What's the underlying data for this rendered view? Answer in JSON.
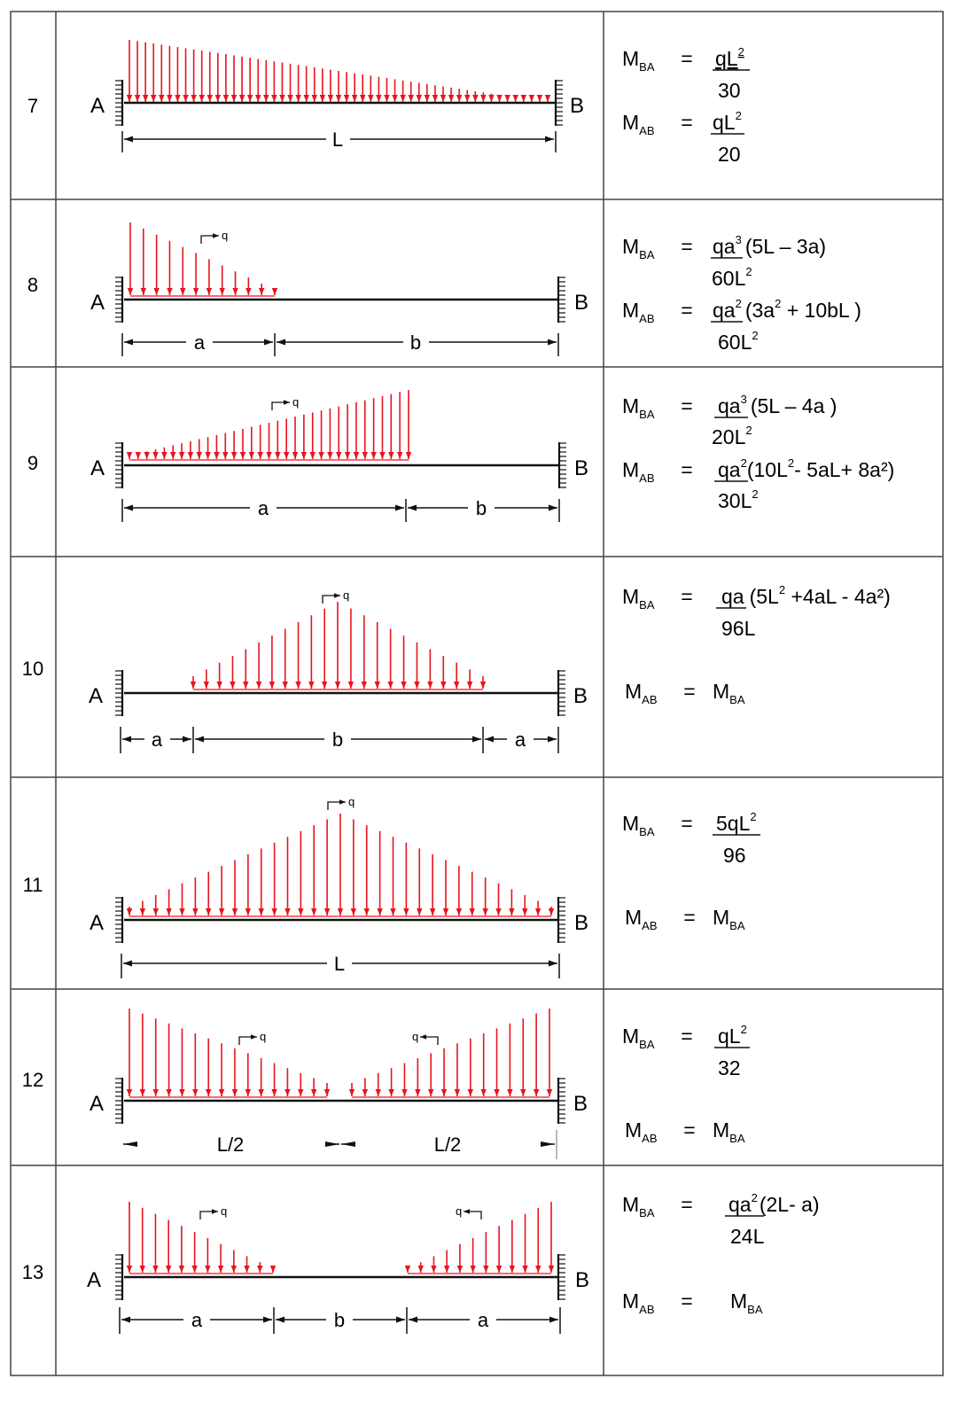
{
  "colors": {
    "load": "#e8141e",
    "ink": "#111111",
    "grid": "#444444"
  },
  "rows": [
    {
      "number": "7",
      "support_left": "A",
      "support_right": "B",
      "load_label": "",
      "load_label_right": "",
      "dims": [
        "L"
      ],
      "formulas": [
        {
          "sym": "M",
          "sub": "BA",
          "eq": "=",
          "num": "qL",
          "num_sup": "2",
          "tail": "",
          "tail_sup": "",
          "tail2": "",
          "den": "30",
          "den_sup": ""
        },
        {
          "sym": "M",
          "sub": "AB",
          "eq": "=",
          "num": "qL",
          "num_sup": "2",
          "tail": "",
          "tail_sup": "",
          "tail2": "",
          "den": "20",
          "den_sup": ""
        }
      ]
    },
    {
      "number": "8",
      "support_left": "A",
      "support_right": "B",
      "load_label": "q",
      "load_label_right": "",
      "dims": [
        "a",
        "b"
      ],
      "formulas": [
        {
          "sym": "M",
          "sub": "BA",
          "eq": "=",
          "num": "qa",
          "num_sup": "3",
          "tail": "(5L – 3a)",
          "tail_sup": "",
          "tail2": "",
          "den": "60L",
          "den_sup": "2"
        },
        {
          "sym": "M",
          "sub": "AB",
          "eq": "=",
          "num": "qa",
          "num_sup": "2",
          "tail": "(3a",
          "tail_sup": "2",
          "tail2": " + 10bL )",
          "den": "60L",
          "den_sup": "2"
        }
      ]
    },
    {
      "number": "9",
      "support_left": "A",
      "support_right": "B",
      "load_label": "q",
      "load_label_right": "",
      "dims": [
        "a",
        "b"
      ],
      "formulas": [
        {
          "sym": "M",
          "sub": "BA",
          "eq": "=",
          "num": "qa",
          "num_sup": "3",
          "tail": "(5L – 4a )",
          "tail_sup": "",
          "tail2": "",
          "den": "20L",
          "den_sup": "2"
        },
        {
          "sym": "M",
          "sub": "AB",
          "eq": "=",
          "num": "qa",
          "num_sup": "2",
          "tail": "(10L",
          "tail_sup": "2",
          "tail2": "- 5aL+ 8a²)",
          "den": "30L",
          "den_sup": "2"
        }
      ]
    },
    {
      "number": "10",
      "support_left": "A",
      "support_right": "B",
      "load_label": "q",
      "load_label_right": "",
      "dims": [
        "a",
        "b",
        "a"
      ],
      "formulas": [
        {
          "sym": "M",
          "sub": "BA",
          "eq": "=",
          "num": "qa",
          "num_sup": "",
          "tail": "(5L",
          "tail_sup": "2",
          "tail2": " +4aL - 4a²)",
          "den": "96L",
          "den_sup": ""
        },
        {
          "sym": "M",
          "sub": "AB",
          "eq": "=",
          "rhs_sym": "M",
          "rhs_sub": "BA"
        }
      ]
    },
    {
      "number": "11",
      "support_left": "A",
      "support_right": "B",
      "load_label": "q",
      "load_label_right": "",
      "dims": [
        "L"
      ],
      "formulas": [
        {
          "sym": "M",
          "sub": "BA",
          "eq": "=",
          "num": "5qL",
          "num_sup": "2",
          "tail": "",
          "tail_sup": "",
          "tail2": "",
          "den": "96",
          "den_sup": ""
        },
        {
          "sym": "M",
          "sub": "AB",
          "eq": "=",
          "rhs_sym": "M",
          "rhs_sub": "BA"
        }
      ]
    },
    {
      "number": "12",
      "support_left": "A",
      "support_right": "B",
      "load_label": "q",
      "load_label_right": "q",
      "dims": [
        "L/2",
        "L/2"
      ],
      "formulas": [
        {
          "sym": "M",
          "sub": "BA",
          "eq": "=",
          "num": "qL",
          "num_sup": "2",
          "tail": "",
          "tail_sup": "",
          "tail2": "",
          "den": "32",
          "den_sup": ""
        },
        {
          "sym": "M",
          "sub": "AB",
          "eq": "=",
          "rhs_sym": "M",
          "rhs_sub": "BA"
        }
      ]
    },
    {
      "number": "13",
      "support_left": "A",
      "support_right": "B",
      "load_label": "q",
      "load_label_right": "q",
      "dims": [
        "a",
        "b",
        "a"
      ],
      "formulas": [
        {
          "sym": "M",
          "sub": "BA",
          "eq": "=",
          "num": "qa",
          "num_sup": "2",
          "tail": "(2L- a)",
          "tail_sup": "",
          "tail2": "",
          "den": "24L",
          "den_sup": ""
        },
        {
          "sym": "M",
          "sub": "AB",
          "eq": "=",
          "rhs_sym": "M",
          "rhs_sub": "BA"
        }
      ]
    }
  ]
}
